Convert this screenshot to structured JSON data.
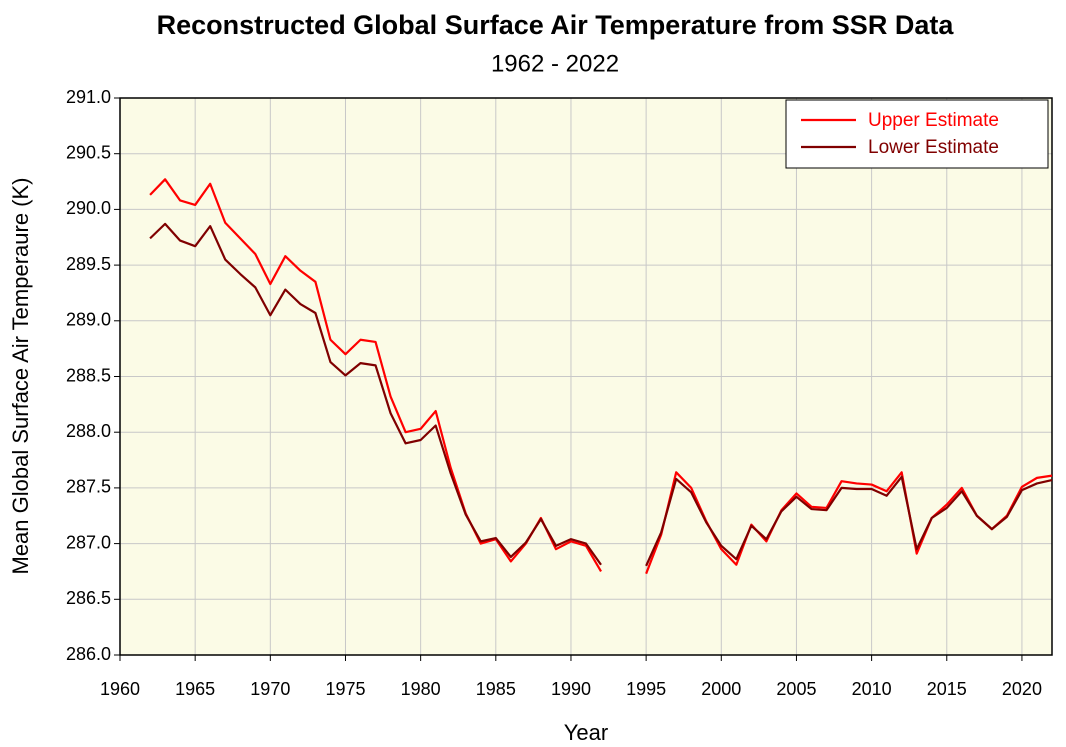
{
  "chart_data": {
    "type": "line",
    "title": "Reconstructed Global Surface Air Temperature from SSR Data",
    "subtitle": "1962 - 2022",
    "x_label": "Year",
    "y_label": "Mean Global Surface Air Temperaure (K)",
    "x": [
      1962,
      1963,
      1964,
      1965,
      1966,
      1967,
      1968,
      1969,
      1970,
      1971,
      1972,
      1973,
      1974,
      1975,
      1976,
      1977,
      1978,
      1979,
      1980,
      1981,
      1982,
      1983,
      1984,
      1985,
      1986,
      1987,
      1988,
      1989,
      1990,
      1991,
      1992,
      1993,
      1994,
      1995,
      1996,
      1997,
      1998,
      1999,
      2000,
      2001,
      2002,
      2003,
      2004,
      2005,
      2006,
      2007,
      2008,
      2009,
      2010,
      2011,
      2012,
      2013,
      2014,
      2015,
      2016,
      2017,
      2018,
      2019,
      2020,
      2021,
      2022
    ],
    "series": [
      {
        "name": "Upper Estimate",
        "color": "#ff0000",
        "values": [
          290.13,
          290.27,
          290.08,
          290.04,
          290.23,
          289.88,
          289.74,
          289.6,
          289.33,
          289.58,
          289.45,
          289.35,
          288.83,
          288.7,
          288.83,
          288.81,
          288.32,
          288.0,
          288.03,
          288.19,
          287.68,
          287.27,
          287.0,
          287.04,
          286.84,
          287.0,
          287.23,
          286.95,
          287.02,
          286.98,
          286.75,
          null,
          null,
          286.73,
          287.08,
          287.64,
          287.5,
          287.2,
          286.95,
          286.81,
          287.17,
          287.02,
          287.3,
          287.45,
          287.33,
          287.32,
          287.56,
          287.54,
          287.53,
          287.47,
          287.64,
          286.91,
          287.23,
          287.35,
          287.5,
          287.25,
          287.13,
          287.25,
          287.51,
          287.59,
          287.61
        ]
      },
      {
        "name": "Lower Estimate",
        "color": "#800000",
        "values": [
          289.74,
          289.87,
          289.72,
          289.67,
          289.85,
          289.55,
          289.42,
          289.3,
          289.05,
          289.28,
          289.15,
          289.07,
          288.63,
          288.51,
          288.62,
          288.6,
          288.17,
          287.9,
          287.93,
          288.06,
          287.63,
          287.26,
          287.02,
          287.05,
          286.88,
          287.01,
          287.22,
          286.98,
          287.04,
          287.0,
          286.81,
          null,
          null,
          286.8,
          287.1,
          287.58,
          287.46,
          287.19,
          286.98,
          286.86,
          287.16,
          287.04,
          287.29,
          287.42,
          287.31,
          287.3,
          287.5,
          287.49,
          287.49,
          287.43,
          287.6,
          286.95,
          287.23,
          287.32,
          287.47,
          287.25,
          287.13,
          287.24,
          287.48,
          287.54,
          287.57
        ]
      }
    ],
    "xlim": [
      1960,
      2022
    ],
    "xticks": [
      1960,
      1965,
      1970,
      1975,
      1980,
      1985,
      1990,
      1995,
      2000,
      2005,
      2010,
      2015,
      2020
    ],
    "ylim": [
      286,
      291
    ],
    "yticks": [
      {
        "value": 286,
        "label": "286.0"
      },
      286.5,
      {
        "value": 287,
        "label": "287.0"
      },
      287.5,
      {
        "value": 288,
        "label": "288.0"
      },
      288.5,
      {
        "value": 289,
        "label": "289.0"
      },
      289.5,
      {
        "value": 290,
        "label": "290.0"
      },
      290.5,
      {
        "value": 291,
        "label": "291.0"
      }
    ],
    "grid": true,
    "legend": "upper right",
    "background": "#fbfbe6"
  }
}
